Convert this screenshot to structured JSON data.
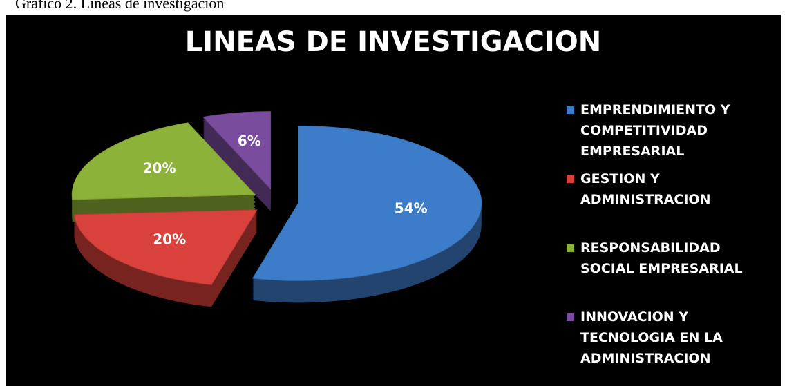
{
  "caption": "Gráfico 2. Líneas de investigación",
  "chart_data": {
    "type": "pie",
    "title": "LINEAS DE INVESTIGACION",
    "categories": [
      "EMPRENDIMIENTO Y COMPETITIVIDAD EMPRESARIAL",
      "GESTION Y ADMINISTRACION",
      "RESPONSABILIDAD SOCIAL EMPRESARIAL",
      "INNOVACION Y TECNOLOGIA EN LA ADMINISTRACION"
    ],
    "values": [
      54,
      20,
      20,
      6
    ],
    "value_labels": [
      "54%",
      "20%",
      "20%",
      "6%"
    ],
    "colors": [
      "#3d7cc9",
      "#d8413c",
      "#8db239",
      "#7a4c9e"
    ],
    "legend": "right"
  }
}
